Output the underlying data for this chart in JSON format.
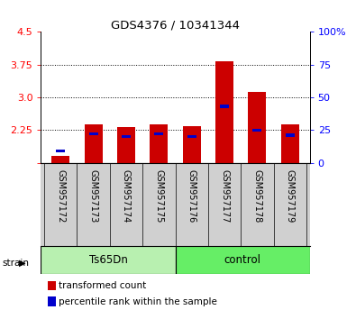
{
  "title": "GDS4376 / 10341344",
  "samples": [
    "GSM957172",
    "GSM957173",
    "GSM957174",
    "GSM957175",
    "GSM957176",
    "GSM957177",
    "GSM957178",
    "GSM957179"
  ],
  "bar_values": [
    1.65,
    2.38,
    2.31,
    2.38,
    2.33,
    3.82,
    3.13,
    2.38
  ],
  "percentile_values": [
    0.09,
    0.22,
    0.2,
    0.22,
    0.2,
    0.43,
    0.25,
    0.21
  ],
  "bar_bottom": 1.5,
  "ylim": [
    1.5,
    4.5
  ],
  "yticks_left": [
    1.5,
    2.25,
    3.0,
    3.75,
    4.5
  ],
  "yticks_right": [
    0,
    25,
    50,
    75,
    100
  ],
  "bar_color": "#cc0000",
  "percentile_color": "#0000cc",
  "bg_color": "#ffffff",
  "sample_bg_color": "#d0d0d0",
  "group_ts_color": "#b8f0b0",
  "group_ctrl_color": "#66ee66",
  "legend_items": [
    "transformed count",
    "percentile rank within the sample"
  ],
  "bar_width": 0.55,
  "group_label": "strain"
}
